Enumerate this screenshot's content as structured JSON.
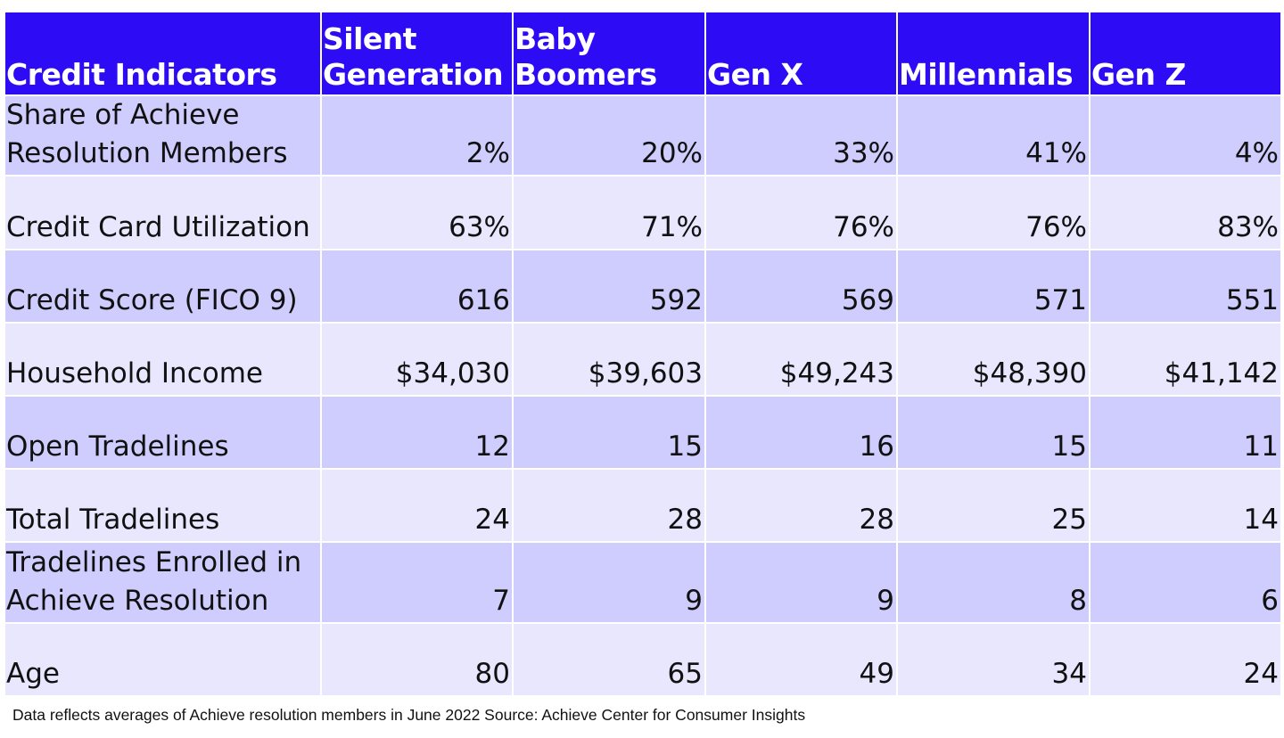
{
  "chart_data": {
    "type": "table",
    "columns": [
      "Credit Indicators",
      "Silent Generation",
      "Baby Boomers",
      "Gen X",
      "Millennials",
      "Gen Z"
    ],
    "rows": [
      {
        "label": "Share of Achieve Resolution Members",
        "values": [
          "2%",
          "20%",
          "33%",
          "41%",
          "4%"
        ]
      },
      {
        "label": "Credit Card Utilization",
        "values": [
          "63%",
          "71%",
          "76%",
          "76%",
          "83%"
        ]
      },
      {
        "label": "Credit Score (FICO 9)",
        "values": [
          "616",
          "592",
          "569",
          "571",
          "551"
        ]
      },
      {
        "label": "Household Income",
        "values": [
          "$34,030",
          "$39,603",
          "$49,243",
          "$48,390",
          "$41,142"
        ]
      },
      {
        "label": "Open Tradelines",
        "values": [
          "12",
          "15",
          "16",
          "15",
          "11"
        ]
      },
      {
        "label": "Total Tradelines",
        "values": [
          "24",
          "28",
          "28",
          "25",
          "14"
        ]
      },
      {
        "label": "Tradelines Enrolled in Achieve Resolution",
        "values": [
          "7",
          "9",
          "9",
          "8",
          "6"
        ]
      },
      {
        "label": "Age",
        "values": [
          "80",
          "65",
          "49",
          "34",
          "24"
        ]
      }
    ],
    "colors": {
      "header_bg": "#2d0cf5",
      "header_text": "#ffffff",
      "row_odd_bg": "#cfcdfd",
      "row_even_bg": "#e8e7fe"
    }
  },
  "footnote": "Data reflects averages of Achieve resolution members in June 2022 Source: Achieve Center for Consumer Insights"
}
